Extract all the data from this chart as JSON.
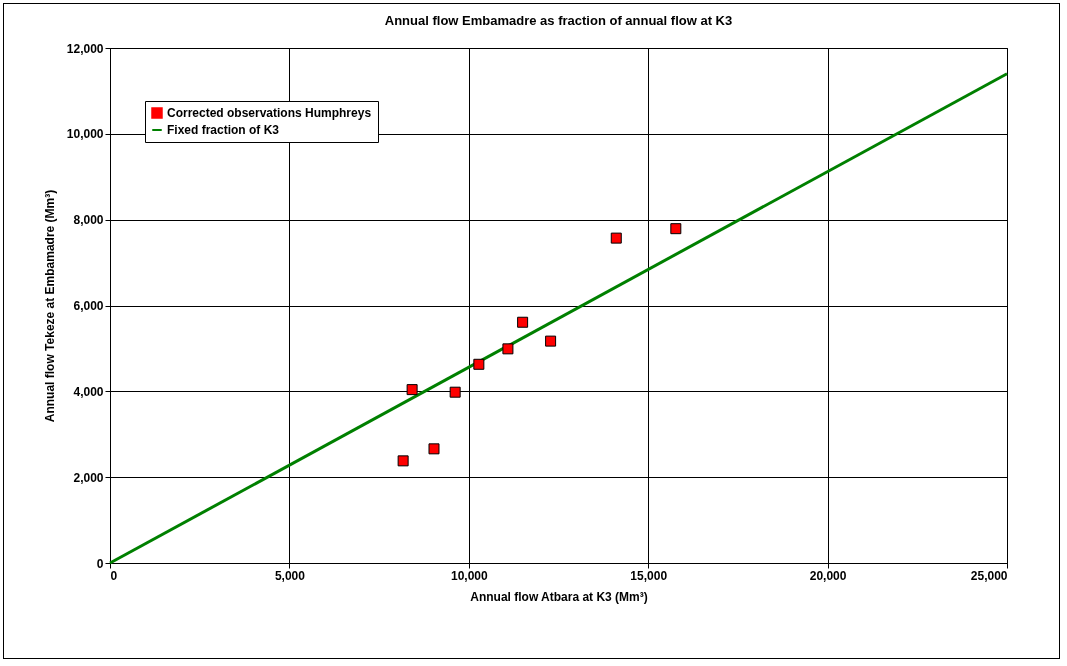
{
  "chart_data": {
    "type": "scatter",
    "title": "Annual flow Embamadre as fraction of annual flow at K3",
    "xlabel": "Annual flow Atbara at K3 (Mm³)",
    "ylabel": "Annual flow Tekeze at Embamadre (Mm³)",
    "series": [
      {
        "name": "Corrected observations Humphreys",
        "color": "#ff0000",
        "marker": "square",
        "x": [
          8170,
          9030,
          8420,
          9620,
          10280,
          11090,
          11500,
          12280,
          14110,
          15770
        ],
        "values": [
          2380,
          2660,
          4040,
          3980,
          4630,
          4990,
          5610,
          5170,
          7570,
          7790
        ]
      },
      {
        "name": "Fixed fraction of K3",
        "type": "line",
        "color": "#008000",
        "line_style": "solid",
        "x": [
          0,
          25000
        ],
        "values": [
          0,
          11400
        ]
      }
    ],
    "xlim": [
      0,
      25000
    ],
    "xticks": [
      {
        "value": 0,
        "label": "0"
      },
      {
        "value": 5000,
        "label": "5,000"
      },
      {
        "value": 10000,
        "label": "10,000"
      },
      {
        "value": 15000,
        "label": "15,000"
      },
      {
        "value": 20000,
        "label": "20,000"
      },
      {
        "value": 25000,
        "label": "25,000"
      }
    ],
    "ylim": [
      0,
      12000
    ],
    "yticks": [
      {
        "value": 0,
        "label": "0"
      },
      {
        "value": 2000,
        "label": "2,000"
      },
      {
        "value": 4000,
        "label": "4,000"
      },
      {
        "value": 6000,
        "label": "6,000"
      },
      {
        "value": 8000,
        "label": "8,000"
      },
      {
        "value": 10000,
        "label": "10,000"
      },
      {
        "value": 12000,
        "label": "12,000"
      }
    ],
    "grid": true,
    "legend": "top left"
  }
}
